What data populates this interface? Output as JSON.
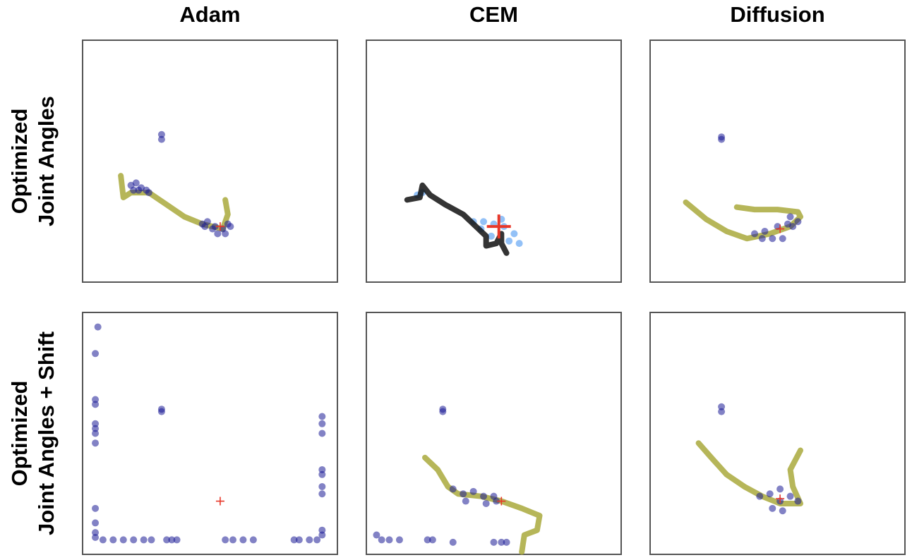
{
  "column_titles": [
    "Adam",
    "CEM",
    "Diffusion"
  ],
  "row_labels": [
    [
      "Optimized",
      "Joint Angles"
    ],
    [
      "Optimized",
      "Joint Angles + Shift"
    ]
  ],
  "chart_data": [
    {
      "type": "scatter",
      "xlim": [
        0,
        100
      ],
      "ylim": [
        0,
        100
      ],
      "series": [
        {
          "color": "#a9a93c",
          "mode": "line",
          "x": [
            15,
            16,
            19,
            26,
            33,
            40,
            47,
            55,
            57,
            56
          ],
          "y": [
            44,
            35,
            37,
            37,
            32,
            27,
            24,
            22,
            28,
            34
          ]
        },
        {
          "color": "#1c1c96",
          "mode": "markers",
          "x": [
            19,
            21,
            23,
            25,
            22,
            26,
            20,
            47,
            49,
            52,
            55,
            57,
            53,
            51,
            56,
            58,
            48,
            31,
            31
          ],
          "y": [
            40,
            41,
            39,
            38,
            38,
            37,
            38,
            24,
            25,
            23,
            22,
            24,
            20,
            22,
            20,
            23,
            23,
            61,
            59
          ]
        },
        {
          "color": "#e8382a",
          "mode": "plus",
          "x": [
            54
          ],
          "y": [
            23
          ]
        }
      ]
    },
    {
      "type": "scatter",
      "xlim": [
        0,
        100
      ],
      "ylim": [
        0,
        100
      ],
      "series": [
        {
          "color": "#3a8ef0",
          "mode": "markers",
          "x": [
            20,
            22,
            42,
            46,
            50,
            54,
            58,
            60,
            49,
            56,
            53,
            45
          ],
          "y": [
            36,
            37,
            25,
            25,
            24,
            23,
            20,
            16,
            19,
            17,
            26,
            22
          ]
        },
        {
          "color": "#111111",
          "mode": "line",
          "x": [
            16,
            21,
            22,
            25,
            31,
            38,
            43,
            47,
            47,
            51,
            53,
            53,
            55
          ],
          "y": [
            34,
            35,
            40,
            36,
            32,
            28,
            23,
            19,
            15,
            16,
            20,
            16,
            12
          ]
        },
        {
          "color": "#e8382a",
          "mode": "large-plus",
          "x": [
            52
          ],
          "y": [
            23
          ]
        }
      ]
    },
    {
      "type": "scatter",
      "xlim": [
        0,
        100
      ],
      "ylim": [
        0,
        100
      ],
      "series": [
        {
          "color": "#a9a93c",
          "mode": "line",
          "x": [
            14,
            22,
            30,
            38,
            47,
            55,
            59,
            58,
            50,
            41,
            34
          ],
          "y": [
            33,
            26,
            21,
            18,
            20,
            23,
            27,
            29,
            30,
            30,
            31
          ]
        },
        {
          "color": "#1c1c96",
          "mode": "markers",
          "x": [
            41,
            45,
            50,
            54,
            56,
            58,
            52,
            48,
            55,
            44,
            28,
            28
          ],
          "y": [
            20,
            21,
            23,
            24,
            23,
            25,
            18,
            18,
            27,
            18,
            60,
            59
          ]
        },
        {
          "color": "#e8382a",
          "mode": "plus",
          "x": [
            51
          ],
          "y": [
            22
          ]
        }
      ]
    },
    {
      "type": "scatter",
      "xlim": [
        0,
        100
      ],
      "ylim": [
        0,
        100
      ],
      "series": [
        {
          "color": "#1c1c96",
          "mode": "markers",
          "x": [
            6,
            5,
            5,
            5,
            5,
            5,
            5,
            5,
            5,
            5,
            5,
            5,
            8,
            12,
            16,
            20,
            24,
            27,
            33,
            35,
            37,
            56,
            59,
            63,
            67,
            83,
            85,
            89,
            92,
            94,
            94,
            94,
            94,
            94,
            94,
            94,
            94,
            94,
            31,
            31
          ],
          "y": [
            94,
            83,
            64,
            62,
            54,
            52,
            50,
            46,
            19,
            13,
            9,
            7,
            6,
            6,
            6,
            6,
            6,
            6,
            6,
            6,
            6,
            6,
            6,
            6,
            6,
            6,
            6,
            6,
            6,
            57,
            54,
            50,
            35,
            33,
            28,
            25,
            10,
            8,
            60,
            59
          ]
        },
        {
          "color": "#e8382a",
          "mode": "plus",
          "x": [
            54
          ],
          "y": [
            22
          ]
        }
      ]
    },
    {
      "type": "scatter",
      "xlim": [
        0,
        100
      ],
      "ylim": [
        0,
        100
      ],
      "series": [
        {
          "color": "#a9a93c",
          "mode": "line",
          "x": [
            23,
            28,
            32,
            36,
            45,
            53,
            61,
            68,
            67,
            62,
            61
          ],
          "y": [
            40,
            35,
            28,
            25,
            24,
            22,
            19,
            16,
            10,
            8,
            1
          ]
        },
        {
          "color": "#1c1c96",
          "mode": "markers",
          "x": [
            34,
            38,
            42,
            46,
            50,
            47,
            39,
            51,
            4,
            6,
            9,
            13,
            24,
            26,
            34,
            50,
            53,
            55,
            30,
            30
          ],
          "y": [
            27,
            25,
            26,
            24,
            24,
            21,
            22,
            22,
            8,
            6,
            6,
            6,
            6,
            6,
            5,
            5,
            5,
            5,
            60,
            59
          ]
        },
        {
          "color": "#e8382a",
          "mode": "plus",
          "x": [
            53
          ],
          "y": [
            22
          ]
        }
      ]
    },
    {
      "type": "scatter",
      "xlim": [
        0,
        100
      ],
      "ylim": [
        0,
        100
      ],
      "series": [
        {
          "color": "#a9a93c",
          "mode": "line",
          "x": [
            19,
            24,
            30,
            37,
            44,
            51,
            59,
            56,
            55,
            59
          ],
          "y": [
            46,
            40,
            33,
            28,
            24,
            21,
            21,
            28,
            35,
            43
          ]
        },
        {
          "color": "#1c1c96",
          "mode": "markers",
          "x": [
            43,
            47,
            51,
            55,
            58,
            52,
            48,
            51,
            28,
            28
          ],
          "y": [
            24,
            25,
            27,
            24,
            22,
            18,
            19,
            22,
            61,
            59
          ]
        },
        {
          "color": "#e8382a",
          "mode": "plus",
          "x": [
            51
          ],
          "y": [
            23
          ]
        }
      ]
    }
  ]
}
